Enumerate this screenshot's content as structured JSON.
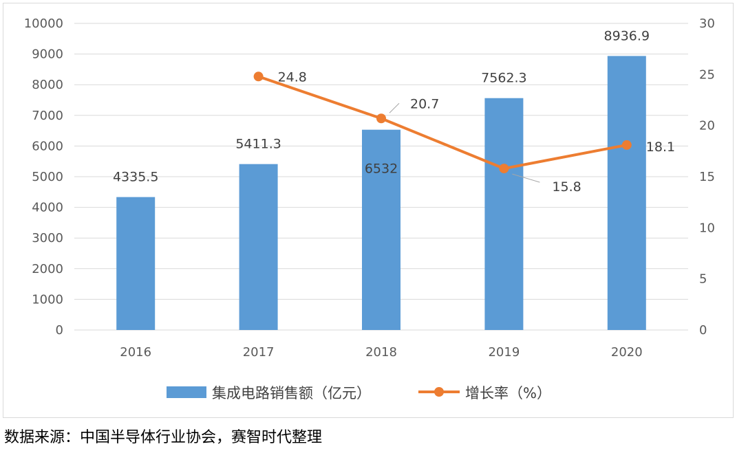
{
  "chart_data": {
    "type": "bar+line",
    "categories": [
      "2016",
      "2017",
      "2018",
      "2019",
      "2020"
    ],
    "series": [
      {
        "name": "集成电路销售额（亿元）",
        "type": "bar",
        "axis": "left",
        "values": [
          4335.5,
          5411.3,
          6532,
          7562.3,
          8936.9
        ],
        "labels": [
          "4335.5",
          "5411.3",
          "6532",
          "7562.3",
          "8936.9"
        ],
        "color": "#5b9bd5"
      },
      {
        "name": "增长率（%）",
        "type": "line",
        "axis": "right",
        "values": [
          null,
          24.8,
          20.7,
          15.8,
          18.1
        ],
        "labels": [
          "",
          "24.8",
          "20.7",
          "15.8",
          "18.1"
        ],
        "color": "#ed7d31"
      }
    ],
    "y_left": {
      "min": 0,
      "max": 10000,
      "step": 1000,
      "ticks": [
        "0",
        "1000",
        "2000",
        "3000",
        "4000",
        "5000",
        "6000",
        "7000",
        "8000",
        "9000",
        "10000"
      ]
    },
    "y_right": {
      "min": 0,
      "max": 30,
      "step": 5,
      "ticks": [
        "0",
        "5",
        "10",
        "15",
        "20",
        "25",
        "30"
      ]
    },
    "grid": true,
    "legend_position": "bottom"
  },
  "source_note": "数据来源：中国半导体行业协会，赛智时代整理"
}
